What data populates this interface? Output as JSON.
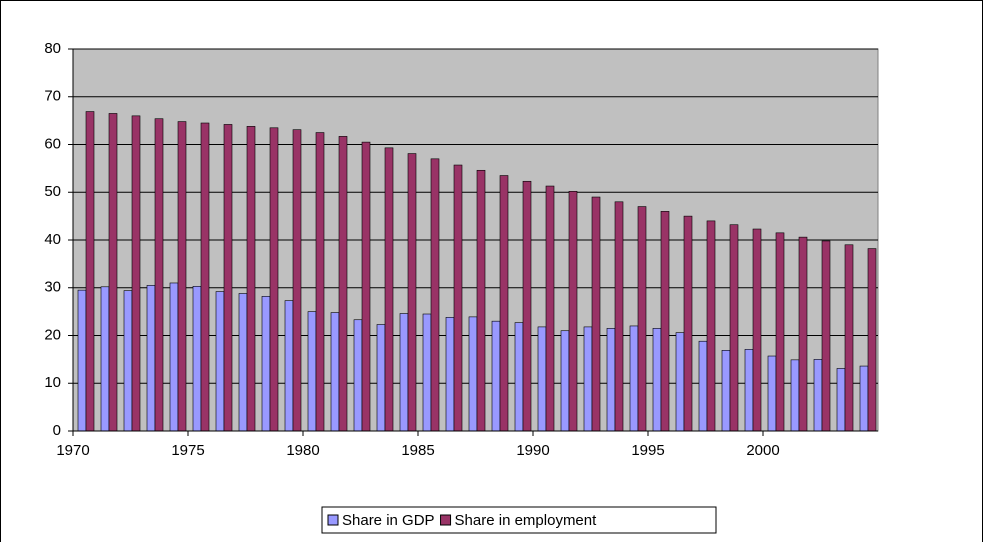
{
  "chart_data": {
    "type": "bar",
    "categories": [
      "1970",
      null,
      null,
      null,
      null,
      "1975",
      null,
      null,
      null,
      null,
      "1980",
      null,
      null,
      null,
      null,
      "1985",
      null,
      null,
      null,
      null,
      "1990",
      null,
      null,
      null,
      null,
      "1995",
      null,
      null,
      null,
      null,
      "2000",
      null,
      null,
      null,
      null
    ],
    "series": [
      {
        "name": "Share in GDP",
        "color": "#9999ff",
        "values": [
          29.5,
          30.2,
          29.4,
          30.5,
          31.0,
          30.3,
          29.2,
          28.8,
          28.2,
          27.3,
          25.0,
          24.8,
          23.3,
          22.3,
          24.6,
          24.5,
          23.8,
          23.9,
          23.0,
          22.7,
          21.8,
          21.0,
          21.8,
          21.5,
          22.0,
          21.5,
          20.6,
          18.8,
          16.9,
          17.1,
          15.7,
          14.9,
          15.0,
          13.1,
          13.6
        ]
      },
      {
        "name": "Share in employment",
        "color": "#993366",
        "values": [
          66.9,
          66.5,
          66.0,
          65.4,
          64.8,
          64.5,
          64.2,
          63.8,
          63.5,
          63.1,
          62.5,
          61.7,
          60.5,
          59.3,
          58.1,
          57.0,
          55.7,
          54.6,
          53.5,
          52.3,
          51.3,
          50.2,
          49.0,
          48.0,
          47.0,
          46.0,
          45.0,
          44.0,
          43.2,
          42.3,
          41.5,
          40.6,
          39.8,
          39.0,
          38.2
        ]
      }
    ],
    "ylim": [
      0,
      80
    ],
    "yticks": [
      0,
      10,
      20,
      30,
      40,
      50,
      60,
      70,
      80
    ],
    "grid": true,
    "plot_background": "#c0c0c0",
    "legend": "bottom"
  }
}
